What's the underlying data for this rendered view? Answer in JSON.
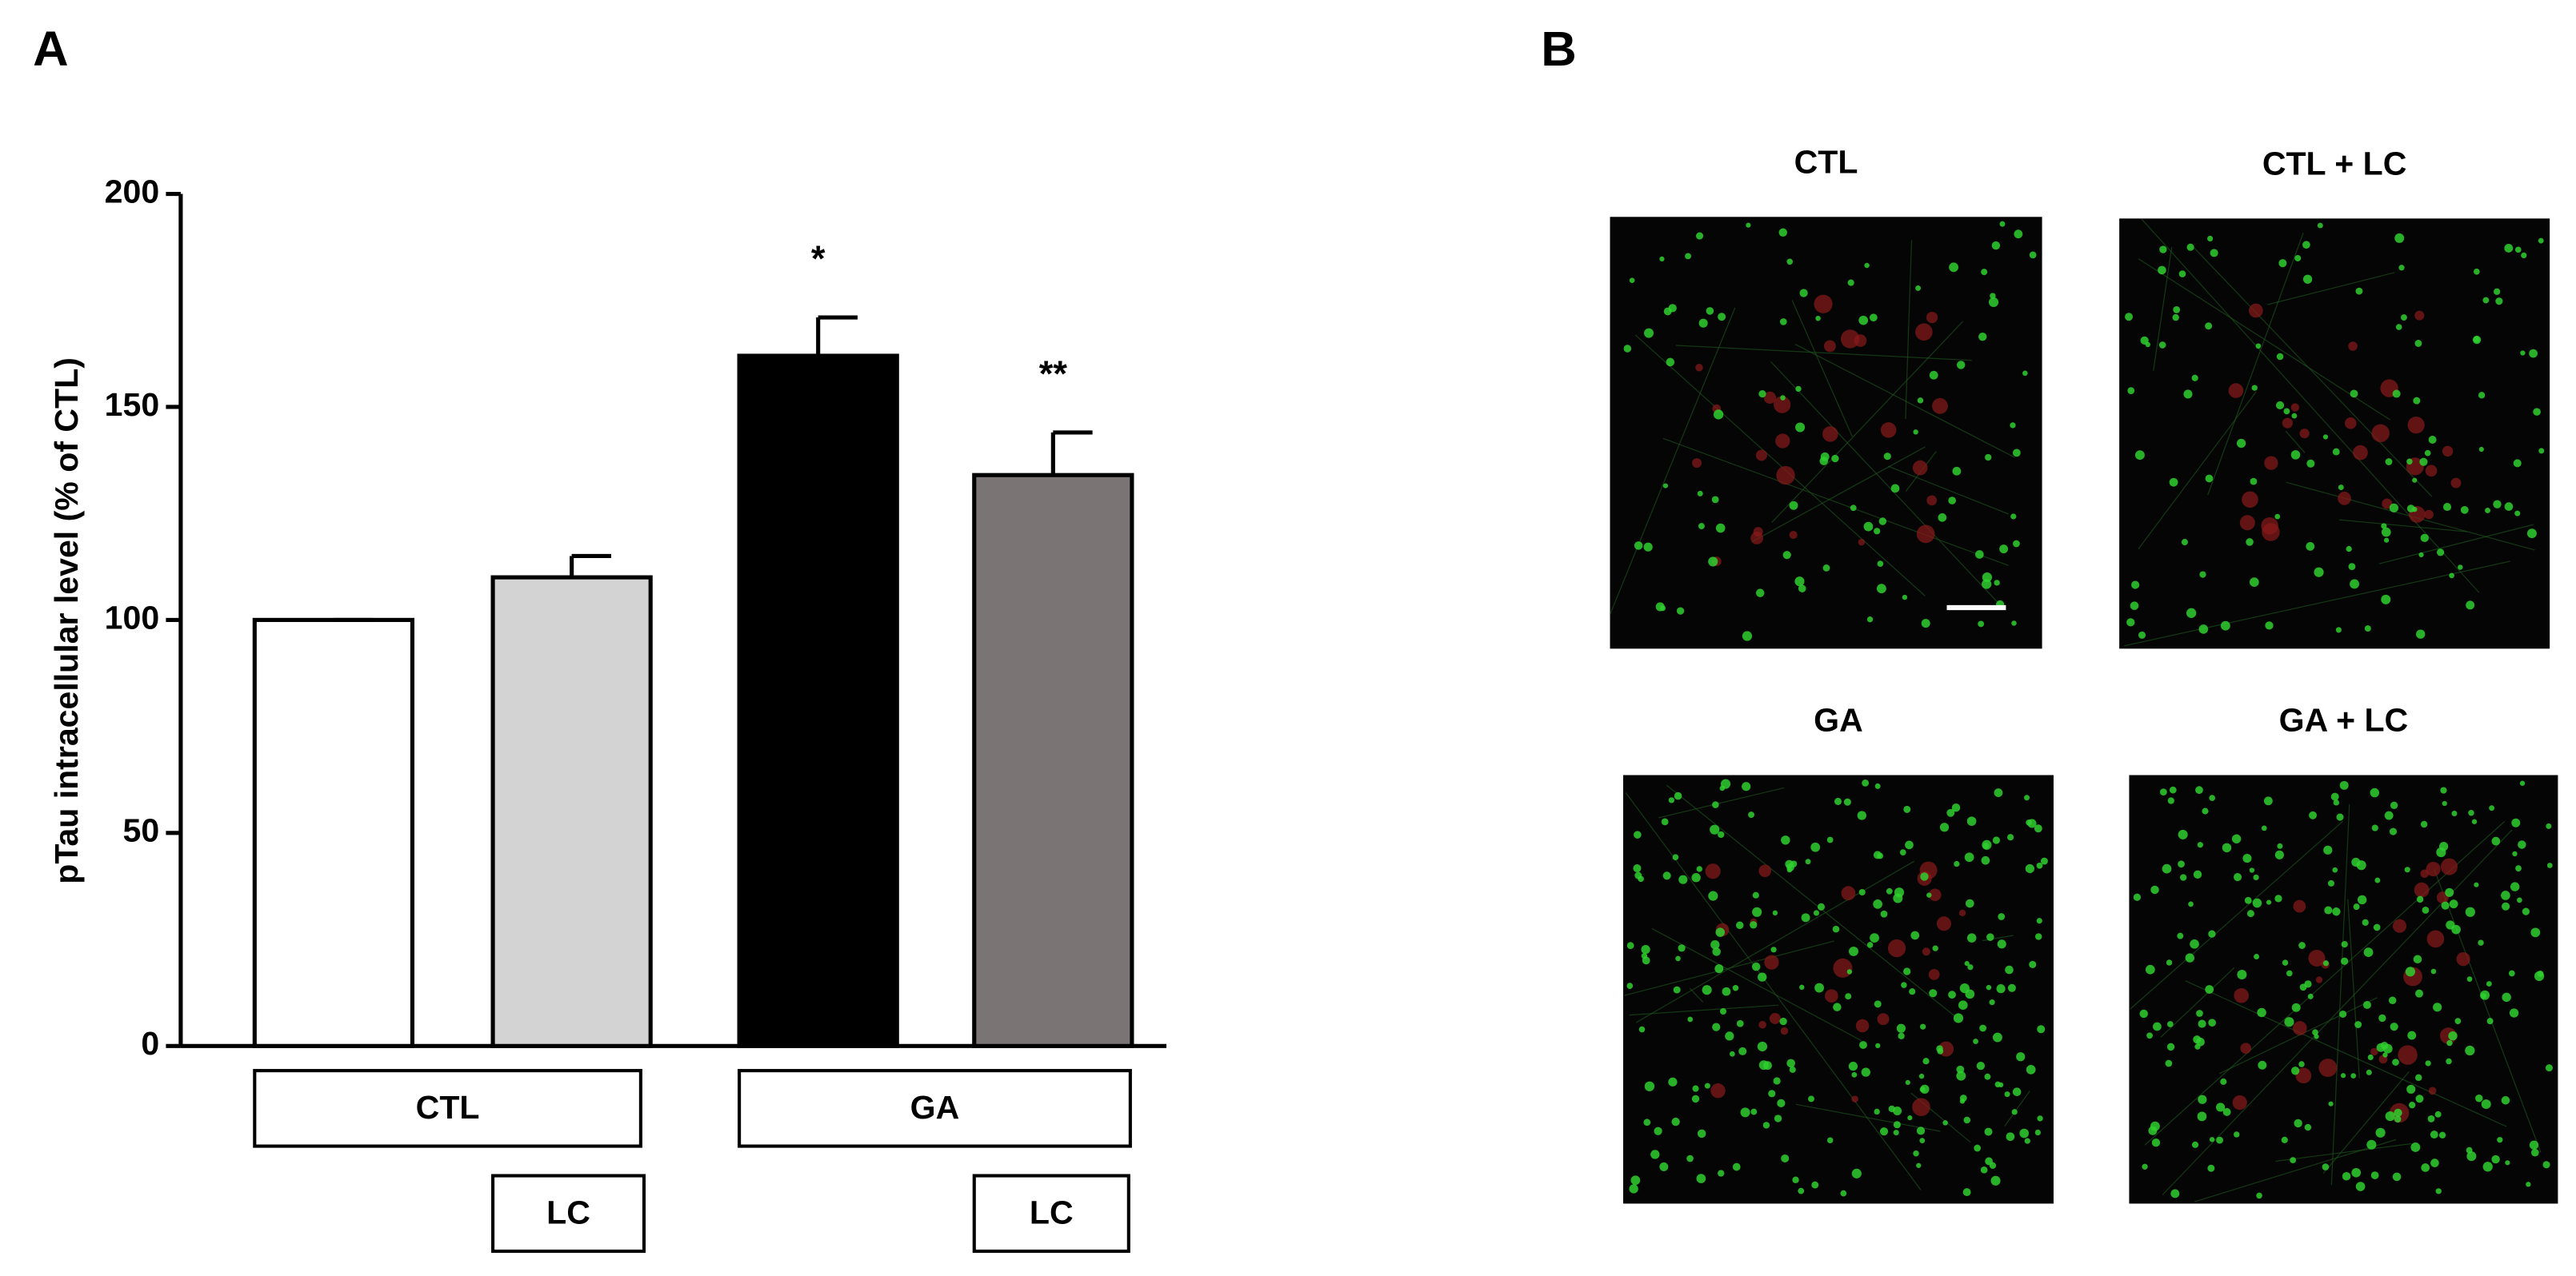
{
  "panel_labels": [
    "A",
    "B"
  ],
  "chart_data": {
    "type": "bar",
    "y_label": "pTau intracellular level (% of CTL)",
    "categories": [
      null,
      null,
      null,
      null
    ],
    "values": [
      100,
      110,
      162,
      134
    ],
    "errors": [
      0,
      5,
      9,
      10
    ],
    "colors": [
      "#ffffff",
      "#d3d3d3",
      "#000000",
      "#7a7474"
    ],
    "significance": [
      null,
      null,
      "*",
      "**"
    ],
    "ylim": [
      0,
      200
    ],
    "yticks": [
      0,
      50,
      100,
      150,
      200
    ],
    "group_labels": [
      "CTL",
      "GA"
    ],
    "treatment_labels": [
      "LC",
      "LC"
    ]
  },
  "images": {
    "titles": [
      "CTL",
      "CTL + LC",
      "GA",
      "GA + LC"
    ]
  }
}
